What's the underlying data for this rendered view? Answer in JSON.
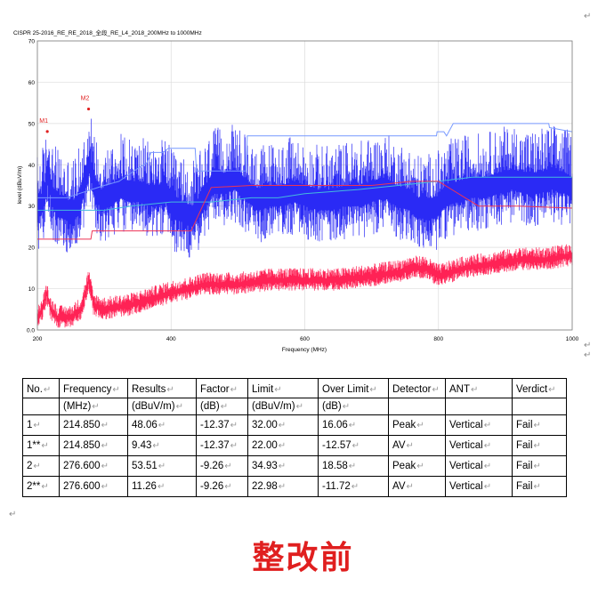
{
  "chart_data": {
    "type": "line",
    "title": "CISPR 25-2016_RE_RE_2018_全段_RE_L4_2018_200MHz to 1000MHz",
    "xlabel": "Frequency (MHz)",
    "ylabel": "level (dBuV/m)",
    "xlim": [
      200,
      1000
    ],
    "ylim": [
      0,
      70
    ],
    "x_ticks": [
      "200",
      "400",
      "600",
      "800",
      "1000"
    ],
    "y_ticks": [
      "0.0",
      "10",
      "20",
      "30",
      "40",
      "50",
      "60",
      "70"
    ],
    "grid": true,
    "markers": [
      {
        "label": "M1",
        "x": 214.85,
        "y": 48.06
      },
      {
        "label": "M2",
        "x": 276.6,
        "y": 53.51
      }
    ],
    "series": [
      {
        "color": "#2a2af5",
        "kind": "peak_noise",
        "x": [
          200,
          206,
          212,
          216,
          222,
          230,
          240,
          252,
          262,
          272,
          278,
          286,
          296,
          310,
          324,
          338,
          352,
          366,
          380,
          392,
          404,
          418,
          432,
          446,
          462,
          478,
          496,
          514,
          532,
          548,
          566,
          584,
          602,
          620,
          640,
          660,
          680,
          700,
          720,
          738,
          756,
          768,
          780,
          796,
          810,
          830,
          850,
          870,
          890,
          910,
          930,
          950,
          970,
          990,
          1000
        ],
        "y": [
          30,
          31,
          34,
          39,
          33,
          31,
          30,
          29,
          31,
          37,
          41,
          35,
          32,
          33,
          35,
          34,
          34,
          33,
          33,
          34,
          30,
          29,
          28,
          31,
          36,
          36,
          37,
          34,
          32,
          33,
          33,
          34,
          33,
          32,
          32,
          33,
          33,
          34,
          35,
          33,
          32,
          30,
          30,
          30,
          33,
          34,
          35,
          35,
          36,
          37,
          36,
          36,
          37,
          36,
          35
        ]
      },
      {
        "color": "#7799ff",
        "kind": "limit_line",
        "x": [
          200,
          228,
          244,
          262,
          300,
          322,
          340,
          354,
          364,
          370,
          388,
          396,
          400,
          420,
          436,
          438,
          474,
          512,
          514,
          560,
          600,
          680,
          700,
          730,
          760,
          797,
          798,
          808,
          812,
          822,
          830,
          900,
          965,
          966,
          1000
        ],
        "y": [
          32,
          32,
          32,
          33,
          35,
          36,
          38,
          39.5,
          40.5,
          43,
          43,
          44,
          44,
          44,
          44,
          38.5,
          38.5,
          38.5,
          47,
          47,
          47,
          47,
          47,
          47,
          47,
          47,
          48,
          48,
          47,
          50,
          50,
          50,
          50,
          49,
          48
        ]
      },
      {
        "color": "#44bbdd",
        "kind": "limit_line",
        "x": [
          200,
          260,
          300,
          340,
          400,
          460,
          520,
          560,
          600,
          680,
          740,
          800,
          850,
          900,
          950,
          1000
        ],
        "y": [
          29,
          29,
          29,
          30,
          31,
          31,
          32,
          32,
          33,
          34,
          35,
          36,
          37,
          37,
          37,
          37
        ]
      },
      {
        "color": "#ee3355",
        "kind": "limit_line",
        "x": [
          200,
          280,
          282,
          340,
          400,
          430,
          460,
          520,
          560,
          600,
          660,
          700,
          760,
          800,
          860,
          920,
          1000
        ],
        "y": [
          22,
          22,
          24,
          24,
          24,
          24,
          34.5,
          35,
          35,
          35,
          35,
          35,
          36,
          36,
          30,
          30,
          29.5
        ]
      },
      {
        "color": "#ff2255",
        "kind": "average_noise",
        "x": [
          200,
          208,
          214,
          220,
          230,
          250,
          265,
          272,
          277,
          284,
          300,
          340,
          380,
          400,
          430,
          450,
          500,
          550,
          600,
          650,
          700,
          740,
          760,
          780,
          800,
          840,
          880,
          920,
          960,
          1000
        ],
        "y": [
          3,
          5,
          9,
          5,
          3,
          3,
          5,
          9,
          12,
          6,
          5,
          6,
          8,
          9,
          10,
          11,
          11,
          12,
          12,
          12,
          13,
          14,
          15,
          15,
          13,
          15,
          16,
          17,
          17,
          18
        ]
      }
    ]
  },
  "table": {
    "headers_line1": [
      "No.",
      "Frequency",
      "Results",
      "Factor",
      "Limit",
      "Over Limit",
      "Detector",
      "ANT",
      "Verdict"
    ],
    "headers_line2": [
      "",
      "(MHz)",
      "(dBuV/m)",
      "(dB)",
      "(dBuV/m)",
      "(dB)",
      "",
      "",
      ""
    ],
    "rows": [
      [
        "1",
        "214.850",
        "48.06",
        "-12.37",
        "32.00",
        "16.06",
        "Peak",
        "Vertical",
        "Fail"
      ],
      [
        "1**",
        "214.850",
        "9.43",
        "-12.37",
        "22.00",
        "-12.57",
        "AV",
        "Vertical",
        "Fail"
      ],
      [
        "2",
        "276.600",
        "53.51",
        "-9.26",
        "34.93",
        "18.58",
        "Peak",
        "Vertical",
        "Fail"
      ],
      [
        "2**",
        "276.600",
        "11.26",
        "-9.26",
        "22.98",
        "-11.72",
        "AV",
        "Vertical",
        "Fail"
      ]
    ]
  },
  "caption": "整改前"
}
